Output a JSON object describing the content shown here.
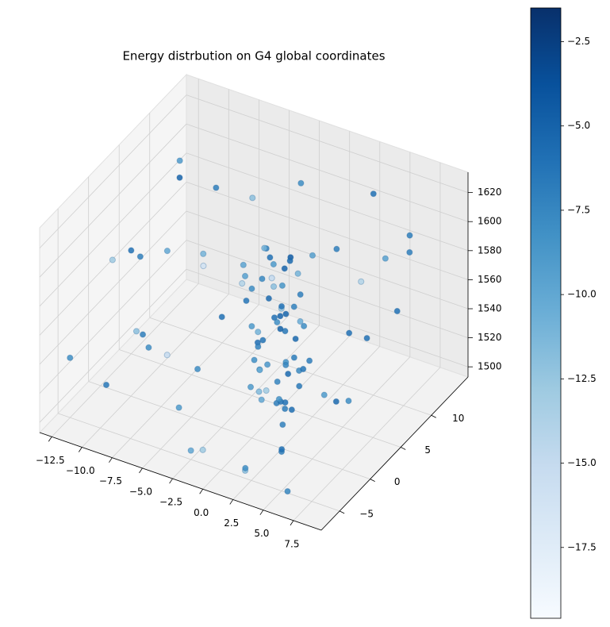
{
  "chart_data": {
    "type": "scatter3d",
    "title": "Energy distrbution on G4 global coordinates",
    "xlim": [
      -13.5,
      9.8
    ],
    "ylim": [
      -8,
      16
    ],
    "zlim": [
      1493,
      1634
    ],
    "xticks": [
      {
        "value": -12.5,
        "label": "−12.5"
      },
      {
        "value": -10,
        "label": "−10.0"
      },
      {
        "value": -7.5,
        "label": "−7.5"
      },
      {
        "value": -5,
        "label": "−5.0"
      },
      {
        "value": -2.5,
        "label": "−2.5"
      },
      {
        "value": 0,
        "label": "0.0"
      },
      2.5,
      {
        "value": 5,
        "label": "5.0"
      },
      7.5
    ],
    "yticks": [
      {
        "value": -5,
        "label": "−5"
      },
      0,
      5,
      10
    ],
    "zticks": [
      1500,
      1520,
      1540,
      1560,
      1580,
      1600,
      1620
    ],
    "colormap": "Blues",
    "clim": [
      -19.6,
      -1.5
    ],
    "cticks": [
      {
        "value": -2.5,
        "label": "−2.5"
      },
      {
        "value": -5,
        "label": "−5.0"
      },
      {
        "value": -7.5,
        "label": "−7.5"
      },
      {
        "value": -10,
        "label": "−10.0"
      },
      {
        "value": -12.5,
        "label": "−12.5"
      },
      {
        "value": -15,
        "label": "−15.0"
      },
      {
        "value": -17.5,
        "label": "−17.5"
      }
    ],
    "x": [
      0.5,
      1.2,
      -0.5,
      2,
      0,
      1.5,
      -1,
      2.5,
      0.8,
      1.8,
      -0.2,
      1,
      2.2,
      -0.8,
      0.3,
      1.6,
      2.8,
      -0.4,
      0.9,
      1.4,
      2.4,
      -1.2,
      0.6,
      1.9,
      0.1,
      2.6,
      -0.6,
      1.1,
      0.4,
      2.1,
      1.3,
      -0.3,
      2.9,
      0.7,
      1.7,
      -0.9,
      2.3,
      0.2,
      1.5,
      -1.4,
      3.2,
      0.9,
      1.6,
      -0.1,
      2,
      0.5,
      1.2,
      2.7,
      -0.7,
      1.9,
      -0.9,
      3.5,
      0,
      1,
      2.5,
      -1.5,
      3,
      0.8,
      1.4,
      2.2,
      -12,
      -11.5,
      -10,
      -9,
      -8,
      -7,
      -6,
      -5,
      -7,
      -5,
      -4,
      -3,
      -8,
      -6,
      -9,
      5,
      6,
      7,
      8,
      5,
      4,
      6,
      3,
      7,
      8,
      4,
      6,
      -2,
      -4,
      2,
      5,
      9,
      -3,
      -10,
      -2,
      0,
      7,
      -12,
      3,
      -6
    ],
    "y": [
      2,
      3,
      1,
      4,
      0,
      2.5,
      3,
      1,
      4,
      0.5,
      2,
      3.5,
      2,
      0.5,
      3,
      1.5,
      3,
      4.5,
      -0.5,
      2.8,
      0,
      2.2,
      1.2,
      3.8,
      2.6,
      1.8,
      1.6,
      0.2,
      3.4,
      2.4,
      1,
      -0.3,
      2.2,
      4.2,
      -0.8,
      3.6,
      3.2,
      0.8,
      4.8,
      1.4,
      0.6,
      2.9,
      3.1,
      1.9,
      0.9,
      3.9,
      2.1,
      4.1,
      2.7,
      1.3,
      0.2,
      1.5,
      5,
      -1,
      5,
      4,
      -0.5,
      1.7,
      4.4,
      -0.2,
      4,
      4.5,
      -3,
      6,
      2,
      8,
      -5,
      10,
      0,
      5,
      -4,
      8,
      -2,
      3,
      -6,
      -5,
      0,
      5,
      10,
      8,
      -3,
      -6,
      -7,
      2,
      -2,
      12,
      10,
      -6,
      0,
      -5,
      4,
      6,
      -2,
      8,
      12,
      -8,
      12,
      -6,
      10,
      -7
    ],
    "z": [
      1610,
      1600,
      1590,
      1580,
      1570,
      1560,
      1550,
      1540,
      1530,
      1520,
      1510,
      1505,
      1615,
      1600,
      1585,
      1575,
      1565,
      1555,
      1545,
      1535,
      1525,
      1515,
      1620,
      1595,
      1578,
      1548,
      1538,
      1528,
      1518,
      1508,
      1612,
      1588,
      1572,
      1562,
      1552,
      1542,
      1532,
      1522,
      1512,
      1602,
      1590,
      1558,
      1606,
      1594,
      1584,
      1568,
      1514,
      1536,
      1526,
      1502,
      1596,
      1544,
      1576,
      1566,
      1604,
      1534,
      1524,
      1598,
      1546,
      1580,
      1570,
      1565,
      1600,
      1620,
      1590,
      1610,
      1560,
      1600,
      1530,
      1540,
      1520,
      1580,
      1550,
      1510,
      1530,
      1520,
      1540,
      1560,
      1600,
      1580,
      1510,
      1500,
      1510,
      1530,
      1550,
      1620,
      1590,
      1505,
      1600,
      1500,
      1620,
      1580,
      1620,
      1620,
      1610,
      1520,
      1600,
      1540,
      1530,
      1580
    ],
    "values": [
      -6,
      -5,
      -8,
      -7,
      -9,
      -6.5,
      -11,
      -5.5,
      -8.5,
      -7,
      -10,
      -6,
      -4.5,
      -9.5,
      -12,
      -5,
      -8,
      -6,
      -10,
      -7.5,
      -6,
      -9,
      -7,
      -11,
      -5.5,
      -6.8,
      -8.2,
      -13,
      -7.4,
      -5.8,
      -9,
      -6.4,
      -10.5,
      -5.2,
      -8.8,
      -6.2,
      -7.8,
      -11.5,
      -6.6,
      -9.8,
      -7.2,
      -4.8,
      -5.6,
      -7.6,
      -12.5,
      -6.1,
      -8.4,
      -6.9,
      -10.2,
      -7.1,
      -14,
      -6.3,
      -8.6,
      -5.9,
      -9.4,
      -7.3,
      -6.7,
      -15,
      -5.4,
      -8.1,
      -6,
      -7,
      -13,
      -5,
      -10,
      -7,
      -8,
      -12,
      -15,
      -6,
      -9,
      -11,
      -7,
      -8,
      -6.5,
      -7,
      -9,
      -6,
      -7,
      -14,
      -6,
      -7.5,
      -12,
      -8,
      -5.5,
      -6,
      -9.5,
      -10,
      -16,
      -8,
      -7,
      -6,
      -11,
      -9,
      -8,
      -13,
      -7,
      -8,
      -6,
      -12
    ]
  }
}
